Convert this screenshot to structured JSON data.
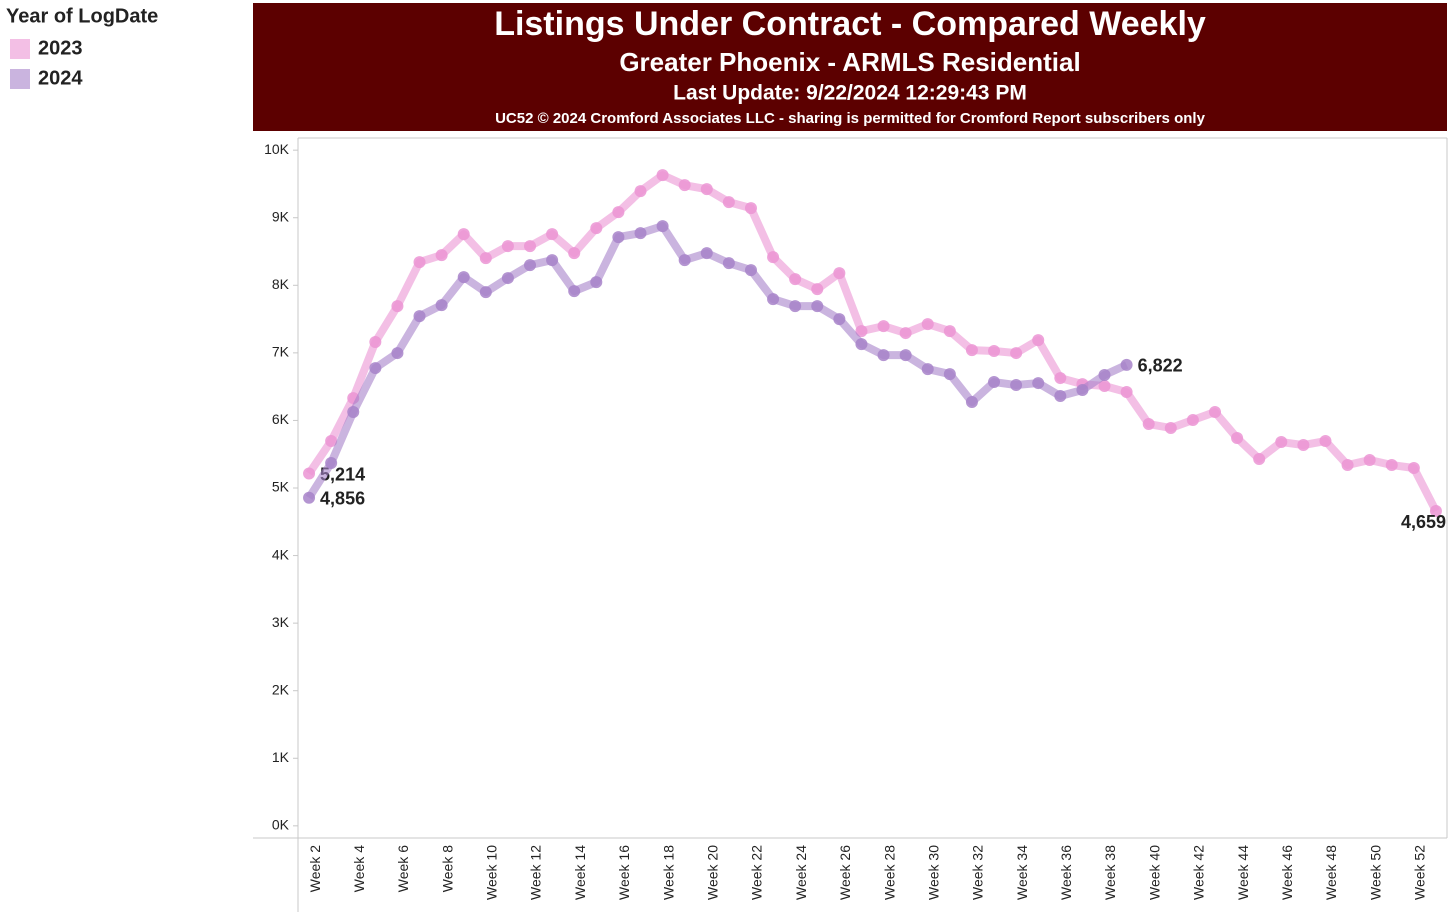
{
  "chart_data": {
    "type": "line",
    "title": "Listings Under Contract - Compared Weekly",
    "subtitle": "Greater Phoenix - ARMLS Residential",
    "update": "Last Update: 9/22/2024 12:29:43 PM",
    "note": "UC52 © 2024 Cromford Associates LLC - sharing is permitted for Cromford Report subscribers only",
    "legend_title": "Year of LogDate",
    "categories": [
      "Week 2",
      null,
      "Week 4",
      null,
      "Week 6",
      null,
      "Week 8",
      null,
      "Week 10",
      null,
      "Week 12",
      null,
      "Week 14",
      null,
      "Week 16",
      null,
      "Week 18",
      null,
      "Week 20",
      null,
      "Week 22",
      null,
      "Week 24",
      null,
      "Week 26",
      null,
      "Week 28",
      null,
      "Week 30",
      null,
      "Week 32",
      null,
      "Week 34",
      null,
      "Week 36",
      null,
      "Week 38",
      null,
      "Week 40",
      null,
      "Week 42",
      null,
      "Week 44",
      null,
      "Week 46",
      null,
      "Week 48",
      null,
      "Week 50",
      null,
      "Week 52",
      null
    ],
    "series": [
      {
        "name": "2023",
        "color": "#eb94d3",
        "values": [
          5214,
          5695,
          6331,
          7160,
          7692,
          8343,
          8447,
          8757,
          8402,
          8580,
          8580,
          8757,
          8476,
          8846,
          9083,
          9393,
          9630,
          9482,
          9423,
          9231,
          9142,
          8417,
          8092,
          7944,
          8180,
          7322,
          7396,
          7293,
          7426,
          7322,
          7041,
          7027,
          6997,
          7189,
          6627,
          6538,
          6509,
          6420,
          5947,
          5888,
          6006,
          6124,
          5740,
          5429,
          5680,
          5636,
          5695,
          5340,
          5414,
          5340,
          5296,
          4659
        ],
        "value_labels": [
          "5,214",
          null,
          null,
          null,
          null,
          null,
          null,
          null,
          null,
          null,
          null,
          null,
          null,
          null,
          null,
          null,
          null,
          null,
          null,
          null,
          null,
          null,
          null,
          null,
          null,
          null,
          null,
          null,
          null,
          null,
          null,
          null,
          null,
          null,
          null,
          null,
          null,
          null,
          null,
          null,
          null,
          null,
          null,
          null,
          null,
          null,
          null,
          null,
          null,
          null,
          null,
          "4,659"
        ]
      },
      {
        "name": "2024",
        "color": "#a782c9",
        "values": [
          4856,
          5370,
          6124,
          6775,
          6997,
          7544,
          7707,
          8121,
          7899,
          8107,
          8299,
          8373,
          7914,
          8047,
          8713,
          8772,
          8876,
          8373,
          8476,
          8328,
          8225,
          7796,
          7692,
          7692,
          7500,
          7130,
          6967,
          6967,
          6760,
          6686,
          6272,
          6568,
          6524,
          6553,
          6361,
          6450,
          6672,
          6822,
          null,
          null,
          null,
          null,
          null,
          null,
          null,
          null,
          null,
          null,
          null,
          null,
          null,
          null
        ],
        "value_labels": [
          "4,856",
          null,
          null,
          null,
          null,
          null,
          null,
          null,
          null,
          null,
          null,
          null,
          null,
          null,
          null,
          null,
          null,
          null,
          null,
          null,
          null,
          null,
          null,
          null,
          null,
          null,
          null,
          null,
          null,
          null,
          null,
          null,
          null,
          null,
          null,
          null,
          null,
          "6,822",
          null,
          null,
          null,
          null,
          null,
          null,
          null,
          null,
          null,
          null,
          null,
          null,
          null,
          null
        ]
      }
    ],
    "ylim": [
      -180,
      10180
    ],
    "yticks": [
      {
        "value": 0,
        "label": "0K"
      },
      {
        "value": 1000,
        "label": "1K"
      },
      {
        "value": 2000,
        "label": "2K"
      },
      {
        "value": 3000,
        "label": "3K"
      },
      {
        "value": 4000,
        "label": "4K"
      },
      {
        "value": 5000,
        "label": "5K"
      },
      {
        "value": 6000,
        "label": "6K"
      },
      {
        "value": 7000,
        "label": "7K"
      },
      {
        "value": 8000,
        "label": "8K"
      },
      {
        "value": 9000,
        "label": "9K"
      },
      {
        "value": 10000,
        "label": "10K"
      }
    ],
    "grid": false
  }
}
